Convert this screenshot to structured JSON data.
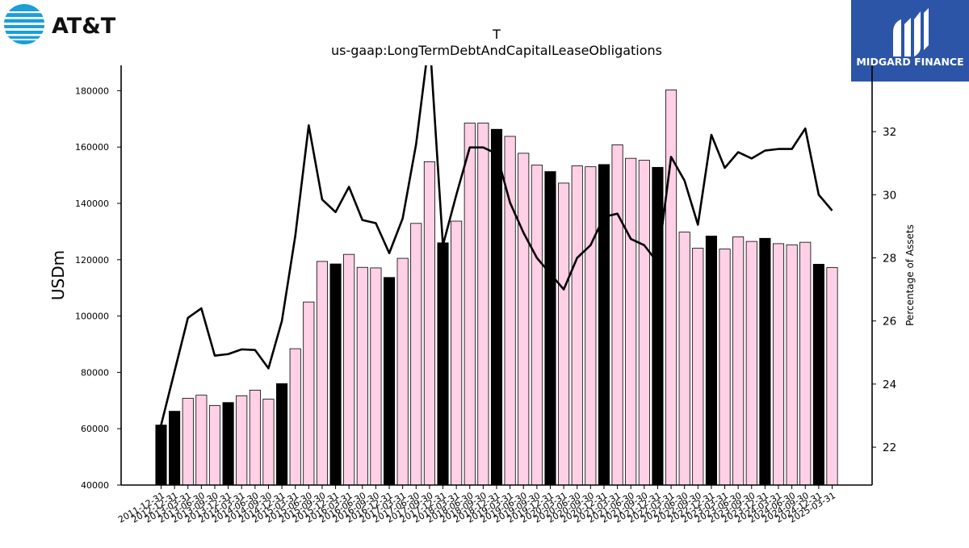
{
  "logos": {
    "left_text": "AT&T",
    "right_text": "MIDGARD FINANCE",
    "right_bg": "#2c55a8",
    "att_blue": "#1a9fd9"
  },
  "chart_data": {
    "type": "bar",
    "title": "T",
    "subtitle": "us-gaap:LongTermDebtAndCapitalLeaseObligations",
    "ylabel": "USDm",
    "y2label": "Percentage of Assets",
    "ylim": [
      40000,
      189000
    ],
    "y2lim": [
      20.8,
      34.1
    ],
    "yticks": [
      40000,
      60000,
      80000,
      100000,
      120000,
      140000,
      160000,
      180000
    ],
    "y2ticks": [
      22,
      24,
      26,
      28,
      30,
      32
    ],
    "colors": {
      "annual": "#000000",
      "quarterly": "#ffd0e6",
      "line": "#000000"
    },
    "categories": [
      "2011-12-31",
      "2012-12-31",
      "2013-03-31",
      "2013-06-30",
      "2013-09-30",
      "2013-12-31",
      "2014-03-31",
      "2014-06-30",
      "2014-09-30",
      "2014-12-31",
      "2015-03-31",
      "2015-06-30",
      "2015-09-30",
      "2015-12-31",
      "2016-03-31",
      "2016-06-30",
      "2016-09-30",
      "2016-12-31",
      "2017-03-31",
      "2017-06-30",
      "2017-09-30",
      "2017-12-31",
      "2018-03-31",
      "2018-06-30",
      "2018-09-30",
      "2018-12-31",
      "2019-03-31",
      "2019-06-30",
      "2019-09-30",
      "2019-12-31",
      "2020-03-31",
      "2020-06-30",
      "2020-09-30",
      "2020-12-31",
      "2021-03-31",
      "2021-06-30",
      "2021-09-30",
      "2021-12-31",
      "2022-03-31",
      "2022-06-30",
      "2022-09-30",
      "2022-12-31",
      "2023-03-31",
      "2023-06-30",
      "2023-09-30",
      "2023-12-31",
      "2024-03-31",
      "2024-06-30",
      "2024-09-30",
      "2024-12-31",
      "2025-03-31"
    ],
    "annual_flags": [
      true,
      true,
      false,
      false,
      false,
      true,
      false,
      false,
      false,
      true,
      false,
      false,
      false,
      true,
      false,
      false,
      false,
      true,
      false,
      false,
      false,
      true,
      false,
      false,
      false,
      true,
      false,
      false,
      false,
      true,
      false,
      false,
      false,
      true,
      false,
      false,
      false,
      true,
      false,
      false,
      false,
      true,
      false,
      false,
      false,
      true,
      false,
      false,
      false,
      true,
      false
    ],
    "series": [
      {
        "name": "",
        "kind": "bar",
        "values": [
          61300,
          66200,
          70800,
          71900,
          68200,
          69300,
          71700,
          73700,
          70500,
          76000,
          88400,
          105000,
          119400,
          118500,
          121900,
          117300,
          117100,
          113700,
          120500,
          132900,
          154800,
          126000,
          133700,
          168500,
          168500,
          166300,
          163800,
          157800,
          153600,
          151300,
          147200,
          153300,
          153000,
          153800,
          160800,
          156000,
          155300,
          152800,
          180300,
          129800,
          124100,
          128400,
          123800,
          128100,
          126500,
          127600,
          125700,
          125300,
          126200,
          118400,
          117200
        ]
      },
      {
        "name": "",
        "kind": "line",
        "axis": "right",
        "values": [
          22.7,
          24.4,
          26.1,
          26.4,
          24.9,
          24.95,
          25.1,
          25.08,
          24.5,
          26.0,
          28.7,
          32.2,
          29.85,
          29.45,
          30.25,
          29.2,
          29.1,
          28.15,
          29.25,
          31.6,
          35.0,
          28.4,
          30.0,
          31.5,
          31.5,
          31.3,
          29.75,
          28.8,
          28.0,
          27.5,
          27.0,
          28.0,
          28.4,
          29.3,
          29.4,
          28.6,
          28.4,
          27.85,
          31.2,
          30.45,
          29.05,
          31.9,
          30.85,
          31.35,
          31.15,
          31.4,
          31.45,
          31.45,
          32.1,
          30.0,
          29.5
        ]
      }
    ]
  }
}
